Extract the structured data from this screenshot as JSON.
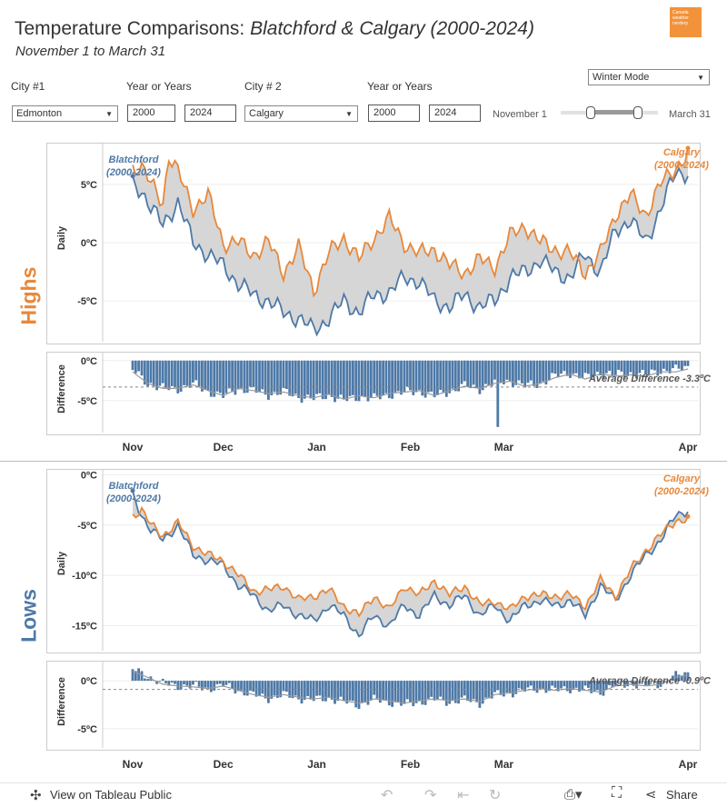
{
  "header": {
    "title_prefix": "Temperature Comparisons: ",
    "title_italic": "Blatchford & Calgary (2000-2024)",
    "subtitle": "November 1 to March 31",
    "logo_text": "Canada weather nerdery"
  },
  "controls": {
    "city1_label": "City #1",
    "years1_label": "Year or Years",
    "city2_label": "City # 2",
    "years2_label": "Year or Years",
    "city1_value": "Edmonton",
    "year1_start": "2000",
    "year1_end": "2024",
    "city2_value": "Calgary",
    "year2_start": "2000",
    "year2_end": "2024",
    "mode_value": "Winter Mode",
    "date_start": "November 1",
    "date_end": "March 31"
  },
  "colors": {
    "blatchford": "#4e79a7",
    "calgary": "#e8883a",
    "fill": "#d6d6d6",
    "avg": "#999999"
  },
  "footer": {
    "view_label": "View on Tableau Public",
    "share_label": "Share"
  },
  "chart_data": [
    {
      "type": "line",
      "title": "Highs",
      "ylabel": "Daily",
      "ytick_labels": [
        "5ºC",
        "0ºC",
        "-5ºC"
      ],
      "ylim": [
        -8.5,
        8.5
      ],
      "x_labels": [
        "Nov",
        "Dec",
        "Jan",
        "Feb",
        "Mar",
        "Apr"
      ],
      "series_labels": {
        "blatchford": "Blatchford (2000-2024)",
        "calgary": "Calgary (2000-2024)"
      },
      "series": [
        {
          "name": "Blatchford",
          "keypoints": [
            [
              0,
              5
            ],
            [
              3,
              4.5
            ],
            [
              6,
              3
            ],
            [
              10,
              1.5
            ],
            [
              15,
              3.5
            ],
            [
              20,
              0
            ],
            [
              25,
              -1
            ],
            [
              30,
              -2
            ],
            [
              35,
              -3.5
            ],
            [
              40,
              -4.5
            ],
            [
              45,
              -5
            ],
            [
              50,
              -6
            ],
            [
              55,
              -6.5
            ],
            [
              60,
              -7.5
            ],
            [
              65,
              -6.5
            ],
            [
              70,
              -5
            ],
            [
              75,
              -6
            ],
            [
              80,
              -4.5
            ],
            [
              85,
              -4.3
            ],
            [
              90,
              -3
            ],
            [
              95,
              -3.3
            ],
            [
              100,
              -5
            ],
            [
              105,
              -5.5
            ],
            [
              110,
              -4.5
            ],
            [
              115,
              -5.5
            ],
            [
              120,
              -5
            ],
            [
              125,
              -3
            ],
            [
              130,
              -2.5
            ],
            [
              135,
              -1.5
            ],
            [
              140,
              -2.5
            ],
            [
              145,
              -3
            ],
            [
              150,
              -1
            ],
            [
              155,
              -2.5
            ],
            [
              160,
              1
            ],
            [
              165,
              2
            ],
            [
              170,
              0
            ],
            [
              175,
              3
            ],
            [
              180,
              6
            ],
            [
              184,
              6
            ]
          ]
        },
        {
          "name": "Calgary",
          "keypoints": [
            [
              0,
              6.5
            ],
            [
              3,
              6.5
            ],
            [
              6,
              5
            ],
            [
              10,
              3.5
            ],
            [
              12,
              7.5
            ],
            [
              15,
              6
            ],
            [
              20,
              3
            ],
            [
              25,
              4
            ],
            [
              30,
              0
            ],
            [
              35,
              0
            ],
            [
              40,
              -1
            ],
            [
              45,
              0
            ],
            [
              50,
              -2.5
            ],
            [
              55,
              -0.5
            ],
            [
              60,
              -4
            ],
            [
              65,
              -1
            ],
            [
              70,
              0.5
            ],
            [
              75,
              -1.5
            ],
            [
              80,
              0.5
            ],
            [
              85,
              2
            ],
            [
              90,
              0
            ],
            [
              95,
              -1
            ],
            [
              100,
              -0.5
            ],
            [
              105,
              -2
            ],
            [
              110,
              -2.5
            ],
            [
              115,
              -1.5
            ],
            [
              120,
              -2
            ],
            [
              125,
              0.5
            ],
            [
              130,
              1.5
            ],
            [
              135,
              0
            ],
            [
              140,
              -0.5
            ],
            [
              145,
              -1
            ],
            [
              150,
              -2.5
            ],
            [
              155,
              -1
            ],
            [
              160,
              2.5
            ],
            [
              165,
              4
            ],
            [
              170,
              2.5
            ],
            [
              175,
              5
            ],
            [
              180,
              6.5
            ],
            [
              184,
              7.5
            ]
          ]
        }
      ]
    },
    {
      "type": "bar",
      "title": "Highs Difference",
      "ylabel": "Difference",
      "ytick_labels": [
        "0ºC",
        "-5ºC"
      ],
      "ylim": [
        -9,
        1
      ],
      "average_label": "Average Difference -3.3ºC",
      "average": -3.3,
      "keypoints": [
        [
          0,
          -1.2
        ],
        [
          5,
          -2.8
        ],
        [
          10,
          -3.5
        ],
        [
          15,
          -3.5
        ],
        [
          20,
          -3
        ],
        [
          25,
          -3.8
        ],
        [
          30,
          -4.5
        ],
        [
          35,
          -3.5
        ],
        [
          40,
          -3.8
        ],
        [
          45,
          -4.2
        ],
        [
          50,
          -4
        ],
        [
          55,
          -4.5
        ],
        [
          60,
          -4.8
        ],
        [
          65,
          -4.3
        ],
        [
          70,
          -5
        ],
        [
          75,
          -4.5
        ],
        [
          80,
          -4.8
        ],
        [
          85,
          -4.2
        ],
        [
          90,
          -4
        ],
        [
          95,
          -3.8
        ],
        [
          100,
          -4.5
        ],
        [
          105,
          -3.8
        ],
        [
          110,
          -3.2
        ],
        [
          115,
          -3.5
        ],
        [
          120,
          -2.8
        ],
        [
          125,
          -2.5
        ],
        [
          130,
          -3.2
        ],
        [
          135,
          -2.8
        ],
        [
          140,
          -2
        ],
        [
          145,
          -1.5
        ],
        [
          150,
          -2.2
        ],
        [
          155,
          -1.5
        ],
        [
          160,
          -1.8
        ],
        [
          165,
          -1.6
        ],
        [
          170,
          -1.8
        ],
        [
          175,
          -1.2
        ],
        [
          180,
          -1.2
        ],
        [
          184,
          -0.8
        ]
      ]
    },
    {
      "type": "line",
      "title": "Lows",
      "ylabel": "Daily",
      "ytick_labels": [
        "0ºC",
        "-5ºC",
        "-10ºC",
        "-15ºC"
      ],
      "ylim": [
        -17.5,
        0.5
      ],
      "x_labels": [
        "Nov",
        "Dec",
        "Jan",
        "Feb",
        "Mar",
        "Apr"
      ],
      "series_labels": {
        "blatchford": "Blatchford (2000-2024)",
        "calgary": "Calgary (2000-2024)"
      },
      "series": [
        {
          "name": "Blatchford",
          "keypoints": [
            [
              0,
              -2
            ],
            [
              3,
              -4
            ],
            [
              6,
              -5.5
            ],
            [
              10,
              -6.5
            ],
            [
              15,
              -5
            ],
            [
              20,
              -8
            ],
            [
              25,
              -8.5
            ],
            [
              30,
              -9
            ],
            [
              35,
              -11
            ],
            [
              40,
              -12
            ],
            [
              45,
              -13.5
            ],
            [
              50,
              -13
            ],
            [
              55,
              -14
            ],
            [
              60,
              -14.5
            ],
            [
              65,
              -13
            ],
            [
              70,
              -14
            ],
            [
              75,
              -16
            ],
            [
              80,
              -14
            ],
            [
              85,
              -15
            ],
            [
              90,
              -13
            ],
            [
              95,
              -14
            ],
            [
              100,
              -12
            ],
            [
              105,
              -13
            ],
            [
              110,
              -12
            ],
            [
              115,
              -14
            ],
            [
              120,
              -13
            ],
            [
              125,
              -14.5
            ],
            [
              130,
              -13
            ],
            [
              135,
              -12.5
            ],
            [
              140,
              -13
            ],
            [
              145,
              -12.5
            ],
            [
              150,
              -14
            ],
            [
              155,
              -11
            ],
            [
              160,
              -12.5
            ],
            [
              165,
              -10
            ],
            [
              170,
              -8
            ],
            [
              175,
              -6.5
            ],
            [
              180,
              -4
            ],
            [
              184,
              -3.5
            ]
          ]
        },
        {
          "name": "Calgary",
          "keypoints": [
            [
              0,
              -4
            ],
            [
              3,
              -3.5
            ],
            [
              6,
              -5
            ],
            [
              10,
              -6
            ],
            [
              15,
              -4.8
            ],
            [
              20,
              -7
            ],
            [
              25,
              -8
            ],
            [
              30,
              -8.5
            ],
            [
              35,
              -10
            ],
            [
              40,
              -11.5
            ],
            [
              45,
              -11.5
            ],
            [
              50,
              -11
            ],
            [
              55,
              -12.5
            ],
            [
              60,
              -12
            ],
            [
              65,
              -11.5
            ],
            [
              70,
              -13
            ],
            [
              75,
              -14
            ],
            [
              80,
              -12
            ],
            [
              85,
              -13.5
            ],
            [
              90,
              -11
            ],
            [
              95,
              -12
            ],
            [
              100,
              -10.5
            ],
            [
              105,
              -12
            ],
            [
              110,
              -11
            ],
            [
              115,
              -13
            ],
            [
              120,
              -12.5
            ],
            [
              125,
              -13.5
            ],
            [
              130,
              -12
            ],
            [
              135,
              -12
            ],
            [
              140,
              -12
            ],
            [
              145,
              -12
            ],
            [
              150,
              -13
            ],
            [
              155,
              -10.5
            ],
            [
              160,
              -12
            ],
            [
              165,
              -9.5
            ],
            [
              170,
              -7.5
            ],
            [
              175,
              -6
            ],
            [
              180,
              -4.5
            ],
            [
              184,
              -4.5
            ]
          ]
        }
      ]
    },
    {
      "type": "bar",
      "title": "Lows Difference",
      "ylabel": "Difference",
      "ytick_labels": [
        "0ºC",
        "-5ºC"
      ],
      "ylim": [
        -7,
        2
      ],
      "average_label": "Average Difference -0.9ºC",
      "average": -0.9,
      "keypoints": [
        [
          0,
          1.2
        ],
        [
          5,
          0.5
        ],
        [
          10,
          -0.3
        ],
        [
          15,
          -0.5
        ],
        [
          20,
          -0.6
        ],
        [
          25,
          -0.8
        ],
        [
          30,
          -0.5
        ],
        [
          35,
          -1
        ],
        [
          40,
          -1.5
        ],
        [
          45,
          -1.8
        ],
        [
          50,
          -1.5
        ],
        [
          55,
          -1.8
        ],
        [
          60,
          -2
        ],
        [
          65,
          -1.8
        ],
        [
          70,
          -2.2
        ],
        [
          75,
          -2.5
        ],
        [
          80,
          -2
        ],
        [
          85,
          -2.2
        ],
        [
          90,
          -2.5
        ],
        [
          95,
          -2.2
        ],
        [
          100,
          -2
        ],
        [
          105,
          -2.2
        ],
        [
          110,
          -2
        ],
        [
          115,
          -2.3
        ],
        [
          120,
          -1.5
        ],
        [
          125,
          -1.3
        ],
        [
          130,
          -1
        ],
        [
          135,
          -0.8
        ],
        [
          140,
          -1
        ],
        [
          145,
          -0.8
        ],
        [
          150,
          -1
        ],
        [
          155,
          -1.2
        ],
        [
          160,
          -0.5
        ],
        [
          165,
          -0.3
        ],
        [
          170,
          -0.5
        ],
        [
          175,
          -0.3
        ],
        [
          180,
          0.5
        ],
        [
          184,
          0.8
        ]
      ]
    }
  ]
}
